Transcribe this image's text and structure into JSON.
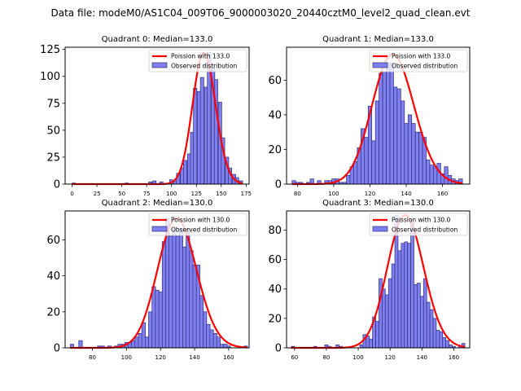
{
  "figure": {
    "suptitle": "Data file: modeM0/AS1C04_009T06_9000003020_20440cztM0_level2_quad_clean.evt"
  },
  "chart_data": [
    {
      "type": "bar",
      "title": "Quadrant 0: Median=133.0",
      "xlim": [
        -7,
        178
      ],
      "ylim": [
        0,
        127
      ],
      "xticks": [
        0,
        25,
        50,
        75,
        100,
        125,
        150,
        175
      ],
      "yticks": [
        0,
        25,
        50,
        75,
        100,
        125
      ],
      "bin_width": 3.5,
      "bins": [
        [
          0,
          1
        ],
        [
          53,
          1
        ],
        [
          77,
          2
        ],
        [
          81,
          3
        ],
        [
          88,
          2
        ],
        [
          98,
          4
        ],
        [
          102,
          3
        ],
        [
          105,
          10
        ],
        [
          109,
          15
        ],
        [
          112,
          22
        ],
        [
          116,
          28
        ],
        [
          119,
          48
        ],
        [
          122,
          89
        ],
        [
          126,
          86
        ],
        [
          129,
          99
        ],
        [
          133,
          90
        ],
        [
          136,
          122
        ],
        [
          140,
          108
        ],
        [
          143,
          97
        ],
        [
          147,
          76
        ],
        [
          150,
          43
        ],
        [
          154,
          25
        ],
        [
          157,
          15
        ],
        [
          161,
          9
        ],
        [
          164,
          6
        ],
        [
          168,
          3
        ]
      ],
      "poisson_mean": 133.0,
      "poisson_peak": 122,
      "legend": {
        "line": "Poission with 133.0",
        "bars": "Observed distribution",
        "position": "top-right"
      }
    },
    {
      "type": "bar",
      "title": "Quadrant 1: Median=133.0",
      "xlim": [
        74,
        175
      ],
      "ylim": [
        0,
        79
      ],
      "xticks": [
        80,
        100,
        120,
        140,
        160
      ],
      "yticks": [
        0,
        20,
        40,
        60
      ],
      "bin_width": 2.0,
      "bins": [
        [
          77,
          2
        ],
        [
          79,
          1
        ],
        [
          81,
          1
        ],
        [
          83,
          0
        ],
        [
          85,
          1
        ],
        [
          87,
          3
        ],
        [
          89,
          0
        ],
        [
          91,
          2
        ],
        [
          93,
          0
        ],
        [
          95,
          2
        ],
        [
          97,
          2
        ],
        [
          99,
          3
        ],
        [
          101,
          3
        ],
        [
          103,
          1
        ],
        [
          105,
          1
        ],
        [
          107,
          5
        ],
        [
          109,
          10
        ],
        [
          111,
          13
        ],
        [
          113,
          21
        ],
        [
          115,
          32
        ],
        [
          117,
          27
        ],
        [
          119,
          45
        ],
        [
          121,
          25
        ],
        [
          123,
          48
        ],
        [
          125,
          64
        ],
        [
          127,
          65
        ],
        [
          129,
          70
        ],
        [
          131,
          70
        ],
        [
          133,
          56
        ],
        [
          135,
          55
        ],
        [
          137,
          48
        ],
        [
          139,
          35
        ],
        [
          141,
          40
        ],
        [
          143,
          35
        ],
        [
          145,
          30
        ],
        [
          147,
          30
        ],
        [
          149,
          27
        ],
        [
          151,
          14
        ],
        [
          153,
          11
        ],
        [
          155,
          10
        ],
        [
          157,
          12
        ],
        [
          159,
          6
        ],
        [
          161,
          10
        ],
        [
          163,
          5
        ],
        [
          165,
          3
        ],
        [
          167,
          2
        ],
        [
          169,
          3
        ]
      ],
      "poisson_mean": 133.0,
      "poisson_peak": 75,
      "legend": {
        "line": "Poission with 133.0",
        "bars": "Observed distribution",
        "position": "top-right"
      }
    },
    {
      "type": "bar",
      "title": "Quadrant 2: Median=130.0",
      "xlim": [
        64,
        172
      ],
      "ylim": [
        0,
        76
      ],
      "xticks": [
        80,
        100,
        120,
        140,
        160
      ],
      "yticks": [
        0,
        20,
        40,
        60
      ],
      "bin_width": 2.1,
      "bins": [
        [
          67,
          2
        ],
        [
          72,
          4
        ],
        [
          83,
          1
        ],
        [
          85,
          1
        ],
        [
          89,
          1
        ],
        [
          93,
          1
        ],
        [
          95,
          2
        ],
        [
          97,
          2
        ],
        [
          99,
          3
        ],
        [
          101,
          3
        ],
        [
          103,
          4
        ],
        [
          105,
          6
        ],
        [
          107,
          8
        ],
        [
          109,
          14
        ],
        [
          111,
          6
        ],
        [
          113,
          20
        ],
        [
          115,
          34
        ],
        [
          117,
          32
        ],
        [
          119,
          31
        ],
        [
          121,
          59
        ],
        [
          123,
          72
        ],
        [
          125,
          62
        ],
        [
          127,
          66
        ],
        [
          129,
          62
        ],
        [
          131,
          66
        ],
        [
          133,
          56
        ],
        [
          135,
          66
        ],
        [
          137,
          54
        ],
        [
          139,
          46
        ],
        [
          141,
          46
        ],
        [
          143,
          29
        ],
        [
          145,
          20
        ],
        [
          147,
          13
        ],
        [
          149,
          10
        ],
        [
          151,
          8
        ],
        [
          153,
          6
        ],
        [
          155,
          2
        ],
        [
          157,
          2
        ],
        [
          159,
          1
        ],
        [
          169,
          1
        ]
      ],
      "poisson_mean": 130.0,
      "poisson_peak": 72,
      "legend": {
        "line": "Poission with 130.0",
        "bars": "Observed distribution",
        "position": "top-right"
      }
    },
    {
      "type": "bar",
      "title": "Quadrant 3: Median=130.0",
      "xlim": [
        55,
        170
      ],
      "ylim": [
        0,
        93
      ],
      "xticks": [
        60,
        80,
        100,
        120,
        140,
        160
      ],
      "yticks": [
        0,
        20,
        40,
        60,
        80
      ],
      "bin_width": 2.0,
      "bins": [
        [
          58,
          1
        ],
        [
          72,
          1
        ],
        [
          79,
          2
        ],
        [
          81,
          1
        ],
        [
          86,
          2
        ],
        [
          88,
          1
        ],
        [
          101,
          2
        ],
        [
          103,
          9
        ],
        [
          105,
          8
        ],
        [
          107,
          6
        ],
        [
          109,
          21
        ],
        [
          111,
          18
        ],
        [
          113,
          47
        ],
        [
          115,
          40
        ],
        [
          117,
          36
        ],
        [
          119,
          47
        ],
        [
          121,
          57
        ],
        [
          123,
          90
        ],
        [
          125,
          66
        ],
        [
          127,
          71
        ],
        [
          129,
          72
        ],
        [
          131,
          71
        ],
        [
          133,
          85
        ],
        [
          135,
          43
        ],
        [
          137,
          44
        ],
        [
          139,
          35
        ],
        [
          141,
          47
        ],
        [
          143,
          31
        ],
        [
          145,
          26
        ],
        [
          147,
          20
        ],
        [
          149,
          12
        ],
        [
          151,
          11
        ],
        [
          153,
          7
        ],
        [
          155,
          5
        ],
        [
          157,
          2
        ],
        [
          159,
          1
        ],
        [
          163,
          1
        ],
        [
          165,
          3
        ]
      ],
      "poisson_mean": 130.0,
      "poisson_peak": 90,
      "legend": {
        "line": "Poission with 130.0",
        "bars": "Observed distribution",
        "position": "top-right"
      }
    }
  ],
  "colors": {
    "bar_fill": "#7f7fef",
    "bar_edge": "#2e2e7a",
    "poisson_line": "#ff0000"
  }
}
